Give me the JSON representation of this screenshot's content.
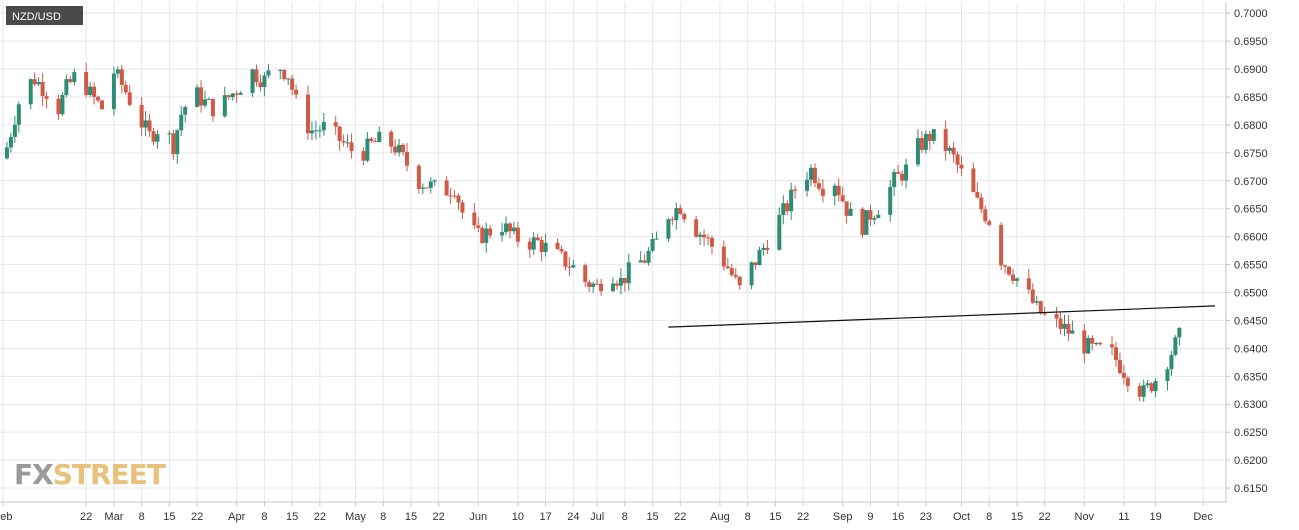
{
  "chart_data": {
    "type": "candlestick",
    "title": "NZD/USD",
    "watermark": {
      "part1": "FX",
      "part2": "STREET"
    },
    "ylim": [
      0.6125,
      0.702
    ],
    "y_ticks": [
      "0.7000",
      "0.6950",
      "0.6900",
      "0.6850",
      "0.6800",
      "0.6750",
      "0.6700",
      "0.6650",
      "0.6600",
      "0.6550",
      "0.6500",
      "0.6450",
      "0.6400",
      "0.6350",
      "0.6300",
      "0.6250",
      "0.6200",
      "0.6150"
    ],
    "x_tick_labels": [
      "Feb",
      "22",
      "Mar",
      "8",
      "15",
      "22",
      "Apr",
      "8",
      "15",
      "22",
      "May",
      "8",
      "15",
      "22",
      "Jun",
      "10",
      "17",
      "24",
      "Jul",
      "8",
      "15",
      "22",
      "Aug",
      "8",
      "15",
      "22",
      "Sep",
      "9",
      "16",
      "23",
      "Oct",
      "8",
      "15",
      "22",
      "Nov",
      "11",
      "19",
      "Dec"
    ],
    "x_tick_days": [
      0,
      21,
      28,
      35,
      42,
      49,
      59,
      66,
      73,
      80,
      89,
      96,
      103,
      110,
      120,
      130,
      137,
      144,
      150,
      157,
      164,
      171,
      181,
      188,
      195,
      202,
      212,
      219,
      226,
      233,
      242,
      249,
      256,
      263,
      273,
      283,
      291,
      303
    ],
    "x_range_days": [
      0,
      306
    ],
    "colors": {
      "up": "#2f8c74",
      "down": "#d05a48",
      "trendline": "#111111",
      "grid": "#e4e7ec",
      "axis": "#bfc4cc",
      "title_bg": "#4a4a4a",
      "wm_fx": "#9a9a9a",
      "wm_street": "#e8c27a"
    },
    "trendline": {
      "start_day": 168,
      "start_value": 0.6438,
      "end_day": 306,
      "end_value": 0.6476
    },
    "series": [
      {
        "key": [
          0,
          0.674
        ],
        "path": [
          [
            1,
            0.676
          ],
          [
            3,
            0.6815
          ],
          [
            5,
            0.6865
          ],
          [
            8,
            0.6882
          ],
          [
            11,
            0.686
          ],
          [
            14,
            0.683
          ],
          [
            16,
            0.6865
          ],
          [
            19,
            0.6895
          ],
          [
            22,
            0.6855
          ],
          [
            25,
            0.683
          ],
          [
            28,
            0.6895
          ],
          [
            31,
            0.686
          ],
          [
            34,
            0.6815
          ],
          [
            37,
            0.678
          ],
          [
            40,
            0.68
          ],
          [
            43,
            0.6765
          ],
          [
            45,
            0.682
          ],
          [
            48,
            0.686
          ],
          [
            51,
            0.684
          ],
          [
            54,
            0.6825
          ],
          [
            57,
            0.685
          ],
          [
            60,
            0.687
          ],
          [
            63,
            0.6895
          ],
          [
            66,
            0.688
          ],
          [
            69,
            0.691
          ],
          [
            72,
            0.689
          ],
          [
            75,
            0.6815
          ],
          [
            78,
            0.679
          ],
          [
            81,
            0.6795
          ],
          [
            84,
            0.678
          ],
          [
            87,
            0.676
          ],
          [
            90,
            0.6745
          ],
          [
            93,
            0.6765
          ],
          [
            96,
            0.6775
          ],
          [
            99,
            0.676
          ],
          [
            102,
            0.673
          ],
          [
            105,
            0.67
          ],
          [
            108,
            0.669
          ],
          [
            111,
            0.668
          ],
          [
            114,
            0.669
          ],
          [
            117,
            0.662
          ],
          [
            120,
            0.66
          ],
          [
            123,
            0.661
          ],
          [
            126,
            0.662
          ],
          [
            129,
            0.66
          ],
          [
            132,
            0.659
          ],
          [
            135,
            0.659
          ],
          [
            138,
            0.6575
          ],
          [
            141,
            0.656
          ],
          [
            144,
            0.6545
          ],
          [
            147,
            0.652
          ],
          [
            150,
            0.651
          ],
          [
            153,
            0.654
          ],
          [
            156,
            0.652
          ],
          [
            159,
            0.6545
          ],
          [
            162,
            0.656
          ],
          [
            165,
            0.659
          ],
          [
            168,
            0.664
          ],
          [
            171,
            0.6655
          ],
          [
            174,
            0.662
          ],
          [
            177,
            0.66
          ],
          [
            180,
            0.6575
          ],
          [
            183,
            0.6545
          ],
          [
            186,
            0.6505
          ],
          [
            189,
            0.6545
          ],
          [
            192,
            0.658
          ],
          [
            195,
            0.662
          ],
          [
            198,
            0.6655
          ],
          [
            201,
            0.67
          ],
          [
            204,
            0.672
          ],
          [
            207,
            0.669
          ],
          [
            210,
            0.67
          ],
          [
            213,
            0.665
          ],
          [
            216,
            0.661
          ],
          [
            219,
            0.664
          ],
          [
            222,
            0.666
          ],
          [
            225,
            0.67
          ],
          [
            228,
            0.672
          ],
          [
            231,
            0.676
          ],
          [
            234,
            0.678
          ],
          [
            237,
            0.677
          ],
          [
            240,
            0.674
          ],
          [
            243,
            0.67
          ],
          [
            246,
            0.666
          ],
          [
            249,
            0.663
          ],
          [
            252,
            0.656
          ],
          [
            255,
            0.6535
          ],
          [
            258,
            0.6505
          ],
          [
            261,
            0.647
          ],
          [
            264,
            0.645
          ],
          [
            267,
            0.644
          ],
          [
            270,
            0.6425
          ],
          [
            273,
            0.6405
          ],
          [
            276,
            0.6395
          ],
          [
            279,
            0.64
          ],
          [
            282,
            0.637
          ],
          [
            285,
            0.634
          ],
          [
            288,
            0.632
          ],
          [
            291,
            0.6345
          ],
          [
            294,
            0.638
          ],
          [
            297,
            0.642
          ]
        ]
      }
    ]
  }
}
